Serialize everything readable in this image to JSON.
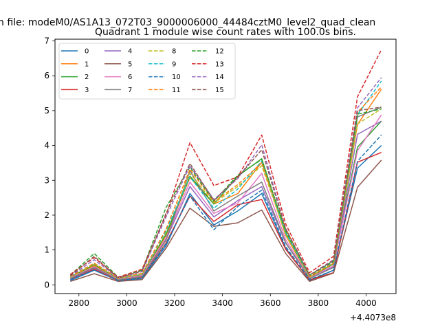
{
  "figure": {
    "suptitle": "n file: modeM0/AS1A13_072T03_9000006000_44484cztM0_level2_quad_clean",
    "x_offset_label": "+4.4073e8"
  },
  "chart_data": {
    "type": "line",
    "title": "Quadrant 1 module wise count rates with 100.0s bins.",
    "xlabel": "",
    "ylabel": "",
    "x_offset": 440730000,
    "xlim": [
      2735,
      2855
    ],
    "ylim": [
      -0.25,
      7.05
    ],
    "xticks": [
      2800,
      3000,
      3200,
      3400,
      3600,
      3800,
      4000
    ],
    "yticks": [
      0,
      1,
      2,
      3,
      4,
      5,
      6,
      7
    ],
    "legend_placement": "upper-left",
    "legend_columns": 4,
    "grid": false,
    "x": [
      2764,
      2864,
      2964,
      3064,
      3164,
      3264,
      3364,
      3464,
      3564,
      3664,
      3764,
      3864,
      3964,
      4064
    ],
    "series": [
      {
        "name": "0",
        "color": "#1f77b4",
        "dash": "solid",
        "values": [
          0.12,
          0.42,
          0.12,
          0.18,
          1.12,
          2.62,
          1.72,
          2.12,
          2.62,
          1.05,
          0.12,
          0.42,
          3.35,
          4.0
        ]
      },
      {
        "name": "1",
        "color": "#ff7f0e",
        "dash": "solid",
        "values": [
          0.2,
          0.55,
          0.18,
          0.28,
          1.42,
          3.08,
          2.32,
          2.62,
          3.52,
          1.42,
          0.22,
          0.6,
          4.6,
          5.62
        ]
      },
      {
        "name": "2",
        "color": "#2ca02c",
        "dash": "solid",
        "values": [
          0.22,
          0.58,
          0.18,
          0.3,
          1.45,
          3.12,
          2.32,
          3.12,
          3.62,
          1.5,
          0.22,
          0.6,
          3.95,
          4.7
        ]
      },
      {
        "name": "3",
        "color": "#d62728",
        "dash": "solid",
        "values": [
          0.16,
          0.45,
          0.12,
          0.22,
          1.2,
          2.55,
          1.82,
          2.3,
          2.45,
          1.02,
          0.14,
          0.35,
          3.52,
          3.8
        ]
      },
      {
        "name": "4",
        "color": "#9467bd",
        "dash": "solid",
        "values": [
          0.18,
          0.48,
          0.15,
          0.25,
          1.3,
          2.82,
          1.95,
          2.42,
          2.82,
          1.2,
          0.18,
          0.52,
          4.32,
          4.7
        ]
      },
      {
        "name": "5",
        "color": "#8c564b",
        "dash": "solid",
        "values": [
          0.1,
          0.32,
          0.1,
          0.15,
          1.05,
          2.2,
          1.68,
          1.78,
          2.15,
          0.9,
          0.1,
          0.34,
          2.8,
          3.58
        ]
      },
      {
        "name": "6",
        "color": "#e377c2",
        "dash": "solid",
        "values": [
          0.2,
          0.52,
          0.16,
          0.27,
          1.35,
          2.95,
          2.05,
          2.35,
          3.2,
          1.3,
          0.2,
          0.55,
          3.85,
          4.88
        ]
      },
      {
        "name": "7",
        "color": "#7f7f7f",
        "dash": "solid",
        "values": [
          0.18,
          0.5,
          0.14,
          0.24,
          1.28,
          3.28,
          2.12,
          2.55,
          2.95,
          1.22,
          0.18,
          0.5,
          4.82,
          5.1
        ]
      },
      {
        "name": "8",
        "color": "#bcbd22",
        "dash": "dashed",
        "values": [
          0.22,
          0.6,
          0.18,
          0.3,
          1.5,
          3.2,
          2.35,
          2.82,
          3.42,
          1.45,
          0.22,
          0.62,
          4.62,
          5.05
        ]
      },
      {
        "name": "9",
        "color": "#17becf",
        "dash": "dashed",
        "values": [
          0.25,
          0.62,
          0.2,
          0.32,
          1.55,
          3.1,
          2.2,
          2.75,
          3.55,
          1.5,
          0.25,
          0.65,
          4.88,
          5.85
        ]
      },
      {
        "name": "10",
        "color": "#1f77b4",
        "dash": "dashed",
        "values": [
          0.15,
          0.42,
          0.12,
          0.2,
          1.18,
          2.55,
          1.58,
          2.25,
          2.72,
          1.1,
          0.15,
          0.42,
          3.55,
          4.3
        ]
      },
      {
        "name": "11",
        "color": "#ff7f0e",
        "dash": "dashed",
        "values": [
          0.24,
          0.62,
          0.2,
          0.33,
          1.6,
          3.32,
          2.38,
          2.88,
          3.5,
          1.62,
          0.25,
          0.62,
          4.95,
          5.68
        ]
      },
      {
        "name": "12",
        "color": "#2ca02c",
        "dash": "dashed",
        "values": [
          0.28,
          0.9,
          0.22,
          0.42,
          2.22,
          3.38,
          2.4,
          3.15,
          3.6,
          1.55,
          0.28,
          0.68,
          4.9,
          5.05
        ]
      },
      {
        "name": "13",
        "color": "#d62728",
        "dash": "dashed",
        "values": [
          0.3,
          0.78,
          0.22,
          0.45,
          2.0,
          4.08,
          2.85,
          3.1,
          4.3,
          1.75,
          0.35,
          0.82,
          5.4,
          6.75
        ]
      },
      {
        "name": "14",
        "color": "#9467bd",
        "dash": "dashed",
        "values": [
          0.25,
          0.72,
          0.2,
          0.38,
          1.95,
          3.42,
          2.45,
          3.05,
          4.02,
          1.62,
          0.28,
          0.72,
          5.08,
          5.95
        ]
      },
      {
        "name": "15",
        "color": "#8c564b",
        "dash": "dashed",
        "values": [
          0.26,
          0.82,
          0.2,
          0.4,
          2.05,
          3.48,
          2.42,
          3.08,
          3.88,
          1.6,
          0.28,
          0.7,
          5.0,
          5.1
        ]
      }
    ]
  }
}
